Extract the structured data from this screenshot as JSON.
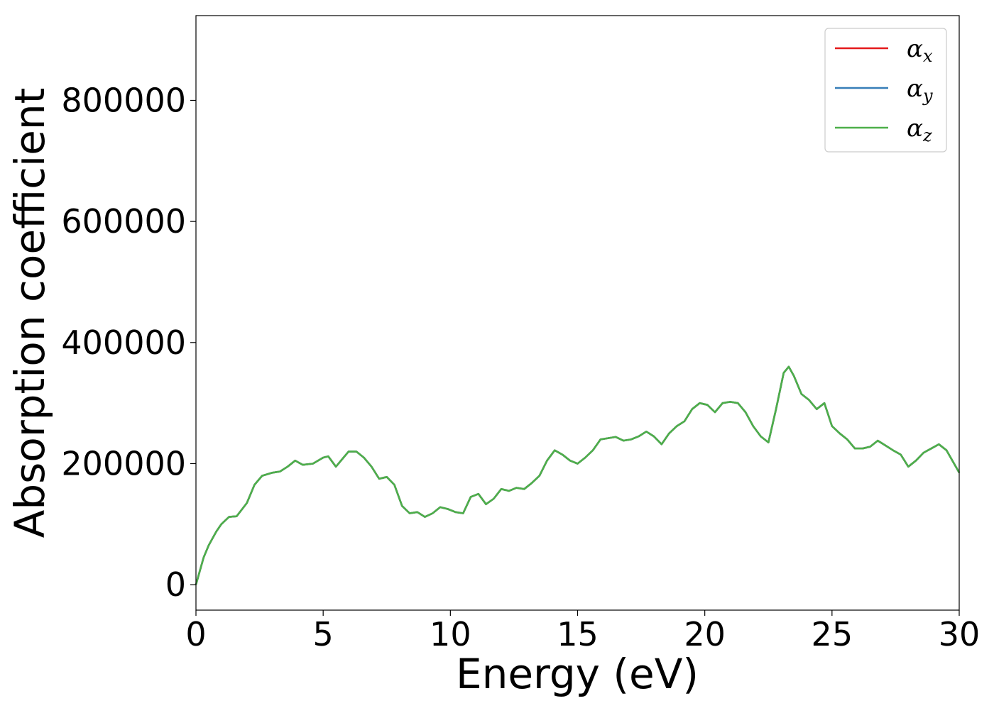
{
  "chart_data": {
    "type": "line",
    "xlabel": "Energy (eV)",
    "ylabel": "Absorption coefficient",
    "xlim": [
      0,
      30
    ],
    "ylim": [
      -42000,
      940000
    ],
    "x_ticks": [
      0,
      5,
      10,
      15,
      20,
      25,
      30
    ],
    "x_tick_labels": [
      "0",
      "5",
      "10",
      "15",
      "20",
      "25",
      "30"
    ],
    "y_ticks": [
      0,
      200000,
      400000,
      600000,
      800000
    ],
    "y_tick_labels": [
      "0",
      "200000",
      "400000",
      "600000",
      "800000"
    ],
    "grid": false,
    "legend_position": "top-right",
    "series": [
      {
        "name": "αx",
        "symbol": "α",
        "subscript": "x",
        "color": "#e41a1c",
        "x": [
          0,
          0.1,
          0.3,
          0.5,
          0.8,
          1.0,
          1.3,
          1.6,
          2.0,
          2.3,
          2.6,
          3.0,
          3.3,
          3.6,
          3.9,
          4.2,
          4.6,
          5.0,
          5.2,
          5.5,
          5.8,
          6.0,
          6.3,
          6.6,
          6.9,
          7.2,
          7.5,
          7.8,
          8.1,
          8.4,
          8.7,
          9.0,
          9.3,
          9.6,
          9.9,
          10.2,
          10.5,
          10.8,
          11.1,
          11.4,
          11.7,
          12.0,
          12.3,
          12.6,
          12.9,
          13.2,
          13.5,
          13.8,
          14.1,
          14.4,
          14.7,
          15.0,
          15.3,
          15.6,
          15.9,
          16.2,
          16.5,
          16.8,
          17.1,
          17.4,
          17.7,
          18.0,
          18.3,
          18.6,
          18.9,
          19.2,
          19.5,
          19.8,
          20.1,
          20.4,
          20.7,
          21.0,
          21.3,
          21.6,
          21.9,
          22.2,
          22.5,
          22.8,
          23.1,
          23.3,
          23.5,
          23.8,
          24.1,
          24.4,
          24.7,
          25.0,
          25.3,
          25.6,
          25.9,
          26.2,
          26.5,
          26.8,
          27.1,
          27.4,
          27.7,
          28.0,
          28.3,
          28.6,
          28.9,
          29.2,
          29.5,
          29.8,
          30.0
        ],
        "y": [
          0,
          15000,
          45000,
          65000,
          88000,
          100000,
          112000,
          113000,
          135000,
          165000,
          180000,
          185000,
          187000,
          195000,
          205000,
          198000,
          200000,
          210000,
          212000,
          195000,
          210000,
          220000,
          220000,
          210000,
          195000,
          175000,
          178000,
          165000,
          130000,
          118000,
          120000,
          112000,
          118000,
          128000,
          125000,
          120000,
          118000,
          145000,
          150000,
          133000,
          142000,
          158000,
          155000,
          160000,
          158000,
          168000,
          180000,
          205000,
          222000,
          215000,
          205000,
          200000,
          210000,
          222000,
          240000,
          242000,
          244000,
          238000,
          240000,
          245000,
          253000,
          245000,
          232000,
          250000,
          262000,
          270000,
          290000,
          300000,
          297000,
          285000,
          300000,
          302000,
          300000,
          285000,
          262000,
          245000,
          235000,
          290000,
          350000,
          360000,
          345000,
          315000,
          305000,
          290000,
          300000,
          262000,
          250000,
          240000,
          225000,
          225000,
          228000,
          238000,
          230000,
          222000,
          215000,
          195000,
          205000,
          218000,
          225000,
          232000,
          222000,
          200000,
          185000
        ]
      },
      {
        "name": "αy",
        "symbol": "α",
        "subscript": "y",
        "color": "#377eb8",
        "x": [
          0,
          0.1,
          0.3,
          0.5,
          0.8,
          1.0,
          1.3,
          1.6,
          2.0,
          2.3,
          2.6,
          3.0,
          3.3,
          3.6,
          3.9,
          4.2,
          4.6,
          5.0,
          5.2,
          5.5,
          5.8,
          6.0,
          6.3,
          6.6,
          6.9,
          7.2,
          7.5,
          7.8,
          8.1,
          8.4,
          8.7,
          9.0,
          9.3,
          9.6,
          9.9,
          10.2,
          10.5,
          10.8,
          11.1,
          11.4,
          11.7,
          12.0,
          12.3,
          12.6,
          12.9,
          13.2,
          13.5,
          13.8,
          14.1,
          14.4,
          14.7,
          15.0,
          15.3,
          15.6,
          15.9,
          16.2,
          16.5,
          16.8,
          17.1,
          17.4,
          17.7,
          18.0,
          18.3,
          18.6,
          18.9,
          19.2,
          19.5,
          19.8,
          20.1,
          20.4,
          20.7,
          21.0,
          21.3,
          21.6,
          21.9,
          22.2,
          22.5,
          22.8,
          23.1,
          23.3,
          23.5,
          23.8,
          24.1,
          24.4,
          24.7,
          25.0,
          25.3,
          25.6,
          25.9,
          26.2,
          26.5,
          26.8,
          27.1,
          27.4,
          27.7,
          28.0,
          28.3,
          28.6,
          28.9,
          29.2,
          29.5,
          29.8,
          30.0
        ],
        "y": [
          0,
          15000,
          45000,
          65000,
          88000,
          100000,
          112000,
          113000,
          135000,
          165000,
          180000,
          185000,
          187000,
          195000,
          205000,
          198000,
          200000,
          210000,
          212000,
          195000,
          210000,
          220000,
          220000,
          210000,
          195000,
          175000,
          178000,
          165000,
          130000,
          118000,
          120000,
          112000,
          118000,
          128000,
          125000,
          120000,
          118000,
          145000,
          150000,
          133000,
          142000,
          158000,
          155000,
          160000,
          158000,
          168000,
          180000,
          205000,
          222000,
          215000,
          205000,
          200000,
          210000,
          222000,
          240000,
          242000,
          244000,
          238000,
          240000,
          245000,
          253000,
          245000,
          232000,
          250000,
          262000,
          270000,
          290000,
          300000,
          297000,
          285000,
          300000,
          302000,
          300000,
          285000,
          262000,
          245000,
          235000,
          290000,
          350000,
          360000,
          345000,
          315000,
          305000,
          290000,
          300000,
          262000,
          250000,
          240000,
          225000,
          225000,
          228000,
          238000,
          230000,
          222000,
          215000,
          195000,
          205000,
          218000,
          225000,
          232000,
          222000,
          200000,
          185000
        ]
      },
      {
        "name": "αz",
        "symbol": "α",
        "subscript": "z",
        "color": "#4daf4a",
        "x": [
          0,
          0.1,
          0.3,
          0.5,
          0.8,
          1.0,
          1.3,
          1.6,
          2.0,
          2.3,
          2.6,
          3.0,
          3.3,
          3.6,
          3.9,
          4.2,
          4.6,
          5.0,
          5.2,
          5.5,
          5.8,
          6.0,
          6.3,
          6.6,
          6.9,
          7.2,
          7.5,
          7.8,
          8.1,
          8.4,
          8.7,
          9.0,
          9.3,
          9.6,
          9.9,
          10.2,
          10.5,
          10.8,
          11.1,
          11.4,
          11.7,
          12.0,
          12.3,
          12.6,
          12.9,
          13.2,
          13.5,
          13.8,
          14.1,
          14.4,
          14.7,
          15.0,
          15.3,
          15.6,
          15.9,
          16.2,
          16.5,
          16.8,
          17.1,
          17.4,
          17.7,
          18.0,
          18.3,
          18.6,
          18.9,
          19.2,
          19.5,
          19.8,
          20.1,
          20.4,
          20.7,
          21.0,
          21.3,
          21.6,
          21.9,
          22.2,
          22.5,
          22.8,
          23.1,
          23.3,
          23.5,
          23.8,
          24.1,
          24.4,
          24.7,
          25.0,
          25.3,
          25.6,
          25.9,
          26.2,
          26.5,
          26.8,
          27.1,
          27.4,
          27.7,
          28.0,
          28.3,
          28.6,
          28.9,
          29.2,
          29.5,
          29.8,
          30.0
        ],
        "y": [
          0,
          15000,
          45000,
          65000,
          88000,
          100000,
          112000,
          113000,
          135000,
          165000,
          180000,
          185000,
          187000,
          195000,
          205000,
          198000,
          200000,
          210000,
          212000,
          195000,
          210000,
          220000,
          220000,
          210000,
          195000,
          175000,
          178000,
          165000,
          130000,
          118000,
          120000,
          112000,
          118000,
          128000,
          125000,
          120000,
          118000,
          145000,
          150000,
          133000,
          142000,
          158000,
          155000,
          160000,
          158000,
          168000,
          180000,
          205000,
          222000,
          215000,
          205000,
          200000,
          210000,
          222000,
          240000,
          242000,
          244000,
          238000,
          240000,
          245000,
          253000,
          245000,
          232000,
          250000,
          262000,
          270000,
          290000,
          300000,
          297000,
          285000,
          300000,
          302000,
          300000,
          285000,
          262000,
          245000,
          235000,
          290000,
          350000,
          360000,
          345000,
          315000,
          305000,
          290000,
          300000,
          262000,
          250000,
          240000,
          225000,
          225000,
          228000,
          238000,
          230000,
          222000,
          215000,
          195000,
          205000,
          218000,
          225000,
          232000,
          222000,
          200000,
          185000
        ]
      }
    ]
  }
}
